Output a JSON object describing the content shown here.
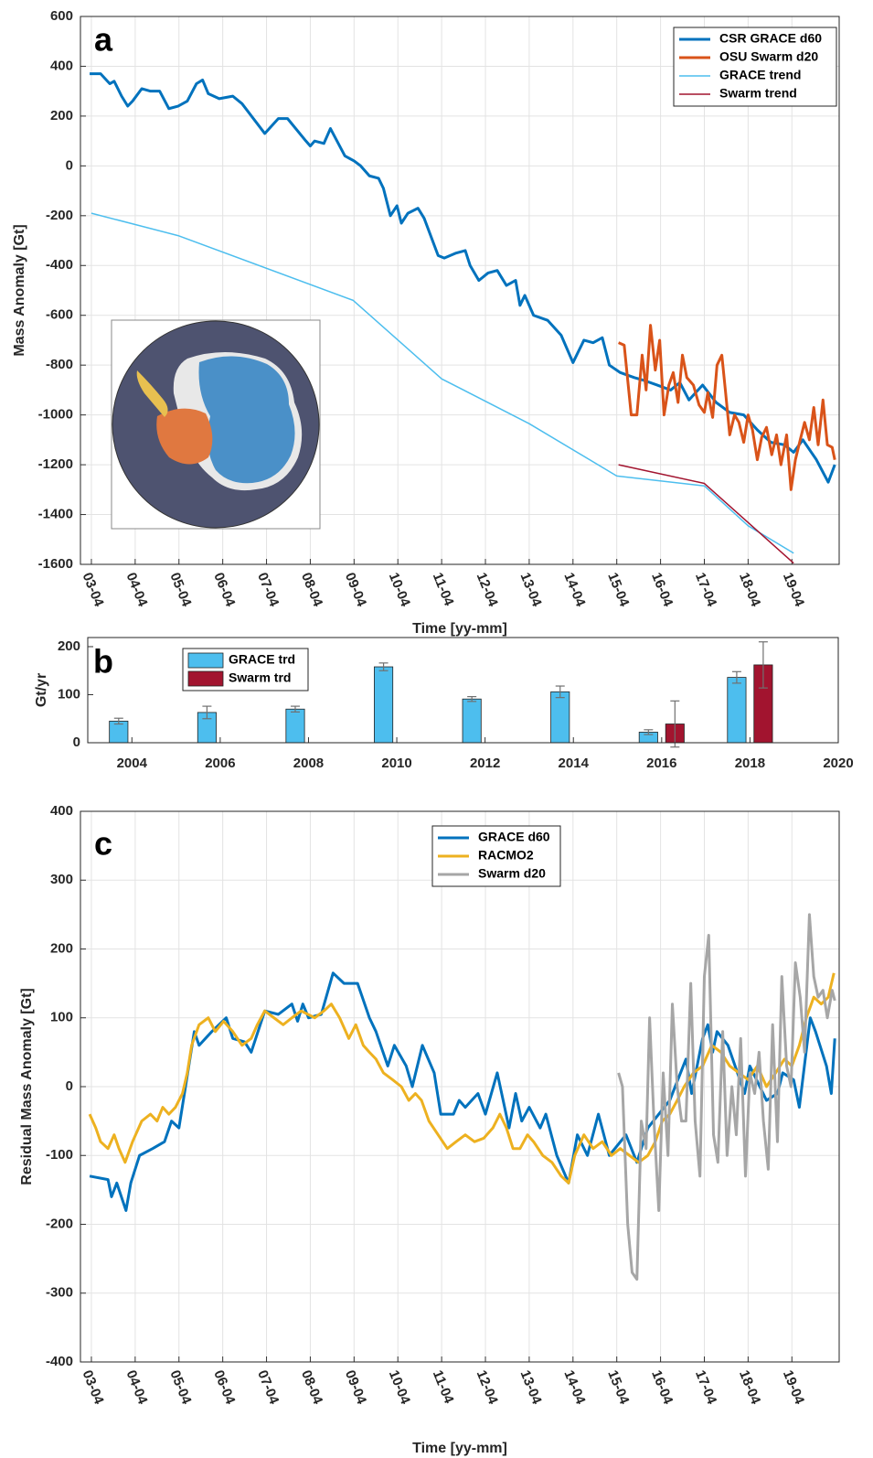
{
  "chart_data": [
    {
      "type": "line",
      "panel_label": "a",
      "xlabel": "Time [yy-mm]",
      "ylabel": "Mass Anomaly [Gt]",
      "xlim": [
        2003,
        2020.33
      ],
      "ylim": [
        -1600,
        600
      ],
      "grid": true,
      "legend": "upper right",
      "xticks": [
        {
          "value": 2003.25,
          "label": "03-04"
        },
        {
          "value": 2004.25,
          "label": "04-04"
        },
        {
          "value": 2005.25,
          "label": "05-04"
        },
        {
          "value": 2006.25,
          "label": "06-04"
        },
        {
          "value": 2007.25,
          "label": "07-04"
        },
        {
          "value": 2008.25,
          "label": "08-04"
        },
        {
          "value": 2009.25,
          "label": "09-04"
        },
        {
          "value": 2010.25,
          "label": "10-04"
        },
        {
          "value": 2011.25,
          "label": "11-04"
        },
        {
          "value": 2012.25,
          "label": "12-04"
        },
        {
          "value": 2013.25,
          "label": "13-04"
        },
        {
          "value": 2014.25,
          "label": "14-04"
        },
        {
          "value": 2015.25,
          "label": "15-04"
        },
        {
          "value": 2016.25,
          "label": "16-04"
        },
        {
          "value": 2017.25,
          "label": "17-04"
        },
        {
          "value": 2018.25,
          "label": "18-04"
        },
        {
          "value": 2019.25,
          "label": "19-04"
        }
      ],
      "yticks": [
        -1600,
        -1400,
        -1200,
        -1000,
        -800,
        -600,
        -400,
        -200,
        0,
        200,
        400,
        600
      ],
      "series": [
        {
          "name": "CSR GRACE d60",
          "color": "#0072bd",
          "x": [
            2003.21,
            2003.46,
            2003.67,
            2003.77,
            2003.94,
            2004.08,
            2004.19,
            2004.4,
            2004.6,
            2004.81,
            2005.02,
            2005.23,
            2005.44,
            2005.65,
            2005.79,
            2005.92,
            2006.17,
            2006.48,
            2006.69,
            2007.21,
            2007.52,
            2007.73,
            2008.15,
            2008.25,
            2008.35,
            2008.56,
            2008.71,
            2009.04,
            2009.25,
            2009.4,
            2009.6,
            2009.81,
            2009.92,
            2010.08,
            2010.23,
            2010.33,
            2010.48,
            2010.71,
            2010.85,
            2011.17,
            2011.31,
            2011.58,
            2011.79,
            2011.9,
            2012.1,
            2012.31,
            2012.52,
            2012.73,
            2012.94,
            2013.04,
            2013.15,
            2013.35,
            2013.67,
            2013.98,
            2014.25,
            2014.5,
            2014.71,
            2014.92,
            2015.08,
            2015.33,
            2015.65,
            2015.85,
            2016.17,
            2016.48,
            2016.69,
            2016.9,
            2017.21,
            2017.52,
            2017.83,
            2018.15,
            2018.46,
            2018.77,
            2019.08,
            2019.29,
            2019.5,
            2019.81,
            2020.08,
            2020.23
          ],
          "values": [
            370,
            370,
            330,
            340,
            280,
            240,
            260,
            310,
            300,
            300,
            230,
            240,
            260,
            330,
            345,
            290,
            270,
            280,
            250,
            130,
            190,
            190,
            100,
            80,
            100,
            90,
            150,
            40,
            20,
            0,
            -40,
            -50,
            -90,
            -200,
            -160,
            -230,
            -190,
            -170,
            -210,
            -360,
            -370,
            -350,
            -340,
            -400,
            -460,
            -430,
            -420,
            -480,
            -460,
            -560,
            -520,
            -600,
            -620,
            -680,
            -790,
            -700,
            -710,
            -690,
            -800,
            -830,
            -850,
            -860,
            -880,
            -900,
            -870,
            -940,
            -880,
            -950,
            -990,
            -1000,
            -1060,
            -1110,
            -1120,
            -1150,
            -1100,
            -1180,
            -1270,
            -1200
          ]
        },
        {
          "name": "OSU Swarm d20",
          "color": "#d95319",
          "x": [
            2015.29,
            2015.42,
            2015.58,
            2015.71,
            2015.83,
            2015.92,
            2016.02,
            2016.13,
            2016.23,
            2016.33,
            2016.44,
            2016.54,
            2016.65,
            2016.75,
            2016.85,
            2017.0,
            2017.13,
            2017.25,
            2017.33,
            2017.44,
            2017.54,
            2017.65,
            2017.73,
            2017.83,
            2017.94,
            2018.04,
            2018.15,
            2018.25,
            2018.35,
            2018.46,
            2018.56,
            2018.67,
            2018.79,
            2018.9,
            2019.0,
            2019.13,
            2019.23,
            2019.33,
            2019.44,
            2019.54,
            2019.65,
            2019.75,
            2019.85,
            2019.96,
            2020.06,
            2020.17,
            2020.23
          ],
          "values": [
            -710,
            -720,
            -1000,
            -1000,
            -760,
            -900,
            -640,
            -820,
            -700,
            -1000,
            -880,
            -830,
            -950,
            -760,
            -850,
            -880,
            -960,
            -990,
            -910,
            -1010,
            -800,
            -760,
            -900,
            -1080,
            -1000,
            -1030,
            -1110,
            -1000,
            -1060,
            -1180,
            -1090,
            -1050,
            -1160,
            -1080,
            -1200,
            -1080,
            -1300,
            -1180,
            -1100,
            -1030,
            -1100,
            -970,
            -1120,
            -940,
            -1120,
            -1130,
            -1180
          ]
        },
        {
          "name": "GRACE trend",
          "color": "#4dbeee",
          "x": [
            2003.25,
            2005.23,
            2009.23,
            2011.25,
            2013.25,
            2015.25,
            2017.25,
            2018.25,
            2019.29
          ],
          "values": [
            -190,
            -280,
            -540,
            -855,
            -1035,
            -1245,
            -1285,
            -1445,
            -1555
          ]
        },
        {
          "name": "Swarm trend",
          "color": "#a2142f",
          "x": [
            2015.29,
            2017.25,
            2019.29
          ],
          "values": [
            -1200,
            -1275,
            -1595
          ]
        }
      ]
    },
    {
      "type": "bar",
      "panel_label": "b",
      "ylabel": "Gt/yr",
      "xlim": [
        2003,
        2020
      ],
      "ylim": [
        0,
        219
      ],
      "grid": false,
      "legend": "upper left",
      "xticks": [
        2004,
        2006,
        2008,
        2010,
        2012,
        2014,
        2016,
        2018,
        2020
      ],
      "yticks": [
        0,
        100,
        200
      ],
      "x": [
        2004,
        2006,
        2008,
        2010,
        2012,
        2014,
        2016,
        2018
      ],
      "series": [
        {
          "name": "GRACE trd",
          "color": "#4dbeee",
          "values": [
            45,
            63,
            70,
            158,
            91,
            106,
            22,
            136
          ],
          "errors": [
            6,
            13,
            6,
            8,
            5,
            12,
            5,
            12
          ]
        },
        {
          "name": "Swarm trd",
          "color": "#a2142f",
          "values": [
            0,
            0,
            0,
            0,
            0,
            0,
            39,
            162
          ],
          "errors": [
            null,
            null,
            null,
            null,
            null,
            null,
            48,
            48
          ]
        }
      ]
    },
    {
      "type": "line",
      "panel_label": "c",
      "xlabel": "Time [yy-mm]",
      "ylabel": "Residual Mass Anomaly [Gt]",
      "xlim": [
        2003,
        2020.33
      ],
      "ylim": [
        -400,
        400
      ],
      "grid": true,
      "legend": "upper center",
      "xticks": [
        {
          "value": 2003.25,
          "label": "03-04"
        },
        {
          "value": 2004.25,
          "label": "04-04"
        },
        {
          "value": 2005.25,
          "label": "05-04"
        },
        {
          "value": 2006.25,
          "label": "06-04"
        },
        {
          "value": 2007.25,
          "label": "07-04"
        },
        {
          "value": 2008.25,
          "label": "08-04"
        },
        {
          "value": 2009.25,
          "label": "09-04"
        },
        {
          "value": 2010.25,
          "label": "10-04"
        },
        {
          "value": 2011.25,
          "label": "11-04"
        },
        {
          "value": 2012.25,
          "label": "12-04"
        },
        {
          "value": 2013.25,
          "label": "13-04"
        },
        {
          "value": 2014.25,
          "label": "14-04"
        },
        {
          "value": 2015.25,
          "label": "15-04"
        },
        {
          "value": 2016.25,
          "label": "16-04"
        },
        {
          "value": 2017.25,
          "label": "17-04"
        },
        {
          "value": 2018.25,
          "label": "18-04"
        },
        {
          "value": 2019.25,
          "label": "19-04"
        }
      ],
      "yticks": [
        -400,
        -300,
        -200,
        -100,
        0,
        100,
        200,
        300,
        400
      ],
      "series": [
        {
          "name": "GRACE d60",
          "color": "#0072bd",
          "x": [
            2003.21,
            2003.63,
            2003.71,
            2003.83,
            2004.04,
            2004.15,
            2004.35,
            2004.65,
            2004.92,
            2005.08,
            2005.25,
            2005.5,
            2005.6,
            2005.71,
            2006.0,
            2006.33,
            2006.48,
            2006.75,
            2006.9,
            2007.21,
            2007.52,
            2007.83,
            2007.96,
            2008.08,
            2008.21,
            2008.5,
            2008.77,
            2009.02,
            2009.33,
            2009.6,
            2009.75,
            2010.02,
            2010.17,
            2010.44,
            2010.58,
            2010.81,
            2011.08,
            2011.23,
            2011.52,
            2011.65,
            2011.79,
            2012.08,
            2012.25,
            2012.52,
            2012.79,
            2012.94,
            2013.08,
            2013.25,
            2013.5,
            2013.63,
            2013.88,
            2014.15,
            2014.35,
            2014.58,
            2014.83,
            2015.08,
            2015.46,
            2015.71,
            2015.96,
            2016.21,
            2016.46,
            2016.83,
            2016.96,
            2017.21,
            2017.33,
            2017.44,
            2017.54,
            2017.79,
            2018.17,
            2018.29,
            2018.67,
            2018.92,
            2019.04,
            2019.29,
            2019.42,
            2019.67,
            2019.79,
            2020.04,
            2020.15,
            2020.23
          ],
          "values": [
            -130,
            -135,
            -160,
            -140,
            -180,
            -140,
            -100,
            -90,
            -80,
            -50,
            -60,
            40,
            80,
            60,
            80,
            100,
            70,
            65,
            50,
            110,
            105,
            120,
            95,
            120,
            100,
            105,
            165,
            150,
            150,
            100,
            80,
            30,
            60,
            30,
            0,
            60,
            20,
            -40,
            -40,
            -20,
            -30,
            -10,
            -40,
            20,
            -60,
            -10,
            -50,
            -30,
            -60,
            -40,
            -100,
            -140,
            -70,
            -100,
            -40,
            -100,
            -70,
            -110,
            -60,
            -40,
            -20,
            40,
            -10,
            70,
            90,
            50,
            80,
            60,
            -10,
            30,
            -20,
            -10,
            20,
            10,
            -30,
            100,
            80,
            30,
            -10,
            70
          ]
        },
        {
          "name": "RACMO2",
          "color": "#edb120",
          "x": [
            2003.21,
            2003.35,
            2003.46,
            2003.63,
            2003.77,
            2003.88,
            2004.02,
            2004.19,
            2004.4,
            2004.6,
            2004.75,
            2004.88,
            2005.02,
            2005.17,
            2005.33,
            2005.44,
            2005.54,
            2005.71,
            2005.92,
            2006.08,
            2006.27,
            2006.48,
            2006.69,
            2006.9,
            2007.04,
            2007.21,
            2007.42,
            2007.63,
            2007.83,
            2008.04,
            2008.35,
            2008.56,
            2008.73,
            2008.92,
            2009.13,
            2009.29,
            2009.46,
            2009.6,
            2009.75,
            2009.92,
            2010.13,
            2010.33,
            2010.5,
            2010.65,
            2010.79,
            2010.96,
            2011.17,
            2011.38,
            2011.58,
            2011.79,
            2012.0,
            2012.21,
            2012.42,
            2012.58,
            2012.73,
            2012.88,
            2013.04,
            2013.21,
            2013.35,
            2013.56,
            2013.77,
            2013.98,
            2014.15,
            2014.29,
            2014.5,
            2014.71,
            2014.92,
            2015.13,
            2015.33,
            2015.54,
            2015.75,
            2015.96,
            2016.13,
            2016.29,
            2016.46,
            2016.63,
            2016.79,
            2017.0,
            2017.21,
            2017.42,
            2017.63,
            2017.83,
            2018.04,
            2018.25,
            2018.46,
            2018.67,
            2018.88,
            2019.08,
            2019.25,
            2019.42,
            2019.58,
            2019.75,
            2019.92,
            2020.08,
            2020.21
          ],
          "values": [
            -40,
            -60,
            -80,
            -90,
            -70,
            -90,
            -110,
            -80,
            -50,
            -40,
            -50,
            -30,
            -40,
            -30,
            -10,
            20,
            60,
            90,
            100,
            80,
            95,
            80,
            60,
            70,
            90,
            110,
            100,
            90,
            100,
            110,
            100,
            110,
            120,
            100,
            70,
            90,
            60,
            50,
            40,
            20,
            10,
            0,
            -20,
            -10,
            -20,
            -50,
            -70,
            -90,
            -80,
            -70,
            -80,
            -75,
            -60,
            -40,
            -60,
            -90,
            -90,
            -70,
            -80,
            -100,
            -110,
            -130,
            -140,
            -100,
            -70,
            -90,
            -80,
            -100,
            -90,
            -100,
            -110,
            -100,
            -80,
            -50,
            -40,
            -20,
            0,
            20,
            30,
            60,
            50,
            30,
            20,
            10,
            30,
            0,
            20,
            40,
            30,
            60,
            100,
            130,
            120,
            130,
            165
          ]
        },
        {
          "name": "Swarm d20",
          "color": "#a6a6a6",
          "x": [
            2015.29,
            2015.38,
            2015.5,
            2015.6,
            2015.71,
            2015.81,
            2015.92,
            2016.0,
            2016.1,
            2016.21,
            2016.31,
            2016.42,
            2016.52,
            2016.63,
            2016.73,
            2016.83,
            2016.94,
            2017.04,
            2017.15,
            2017.25,
            2017.35,
            2017.46,
            2017.56,
            2017.67,
            2017.77,
            2017.88,
            2017.98,
            2018.08,
            2018.19,
            2018.29,
            2018.4,
            2018.5,
            2018.6,
            2018.71,
            2018.81,
            2018.92,
            2019.02,
            2019.13,
            2019.23,
            2019.33,
            2019.44,
            2019.54,
            2019.65,
            2019.75,
            2019.85,
            2019.96,
            2020.06,
            2020.17,
            2020.23
          ],
          "values": [
            20,
            0,
            -200,
            -270,
            -280,
            -50,
            -90,
            100,
            -50,
            -180,
            20,
            -100,
            120,
            0,
            -50,
            -50,
            150,
            -50,
            -130,
            160,
            220,
            -70,
            -110,
            80,
            -100,
            0,
            -70,
            70,
            -130,
            20,
            -10,
            50,
            -50,
            -120,
            90,
            -80,
            160,
            30,
            0,
            180,
            130,
            50,
            250,
            160,
            130,
            140,
            100,
            140,
            125
          ]
        }
      ]
    }
  ]
}
